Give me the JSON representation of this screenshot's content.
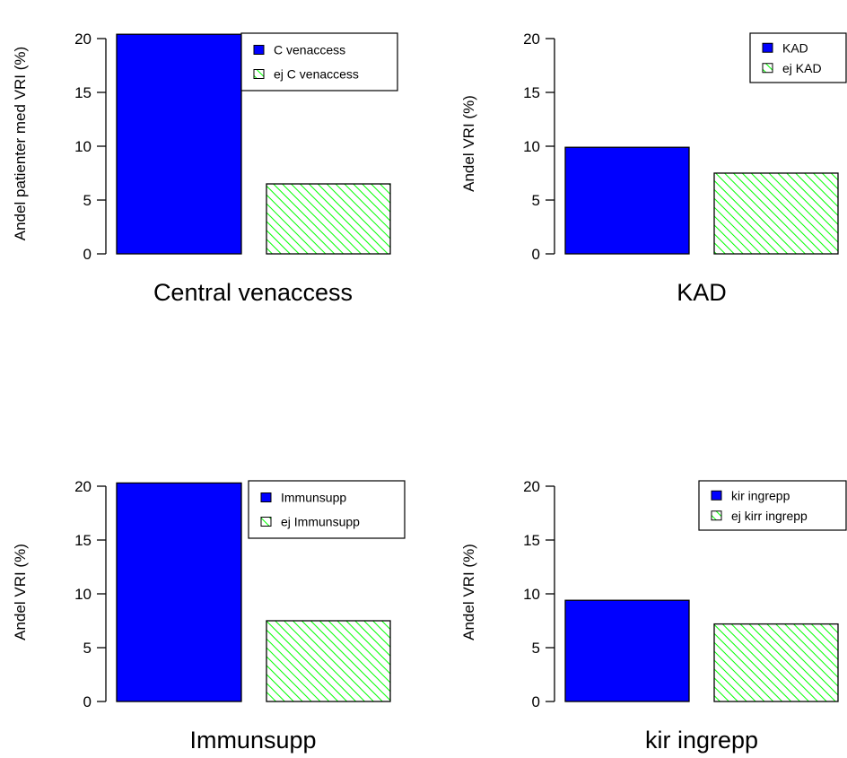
{
  "chart_data": [
    {
      "type": "bar",
      "xlabel": "Central venaccess",
      "ylabel": "Andel patienter med VRI (%)",
      "ylim": [
        0,
        20
      ],
      "yticks": [
        0,
        5,
        10,
        15,
        20
      ],
      "legend": "top-right",
      "series": [
        {
          "name": "C venaccess",
          "values": [
            20.4
          ],
          "color": "#0000ff",
          "pattern": "solid"
        },
        {
          "name": "ej C venaccess",
          "values": [
            6.5
          ],
          "color": "#00ff00",
          "pattern": "hatch"
        }
      ]
    },
    {
      "type": "bar",
      "xlabel": "KAD",
      "ylabel": "Andel VRI (%)",
      "ylim": [
        0,
        20
      ],
      "yticks": [
        0,
        5,
        10,
        15,
        20
      ],
      "legend": "top-right",
      "series": [
        {
          "name": "KAD",
          "values": [
            9.9
          ],
          "color": "#0000ff",
          "pattern": "solid"
        },
        {
          "name": "ej KAD",
          "values": [
            7.5
          ],
          "color": "#00ff00",
          "pattern": "hatch"
        }
      ]
    },
    {
      "type": "bar",
      "xlabel": "Immunsupp",
      "ylabel": "Andel VRI (%)",
      "ylim": [
        0,
        20
      ],
      "yticks": [
        0,
        5,
        10,
        15,
        20
      ],
      "legend": "top-right",
      "series": [
        {
          "name": "Immunsupp",
          "values": [
            20.3
          ],
          "color": "#0000ff",
          "pattern": "solid"
        },
        {
          "name": "ej Immunsupp",
          "values": [
            7.5
          ],
          "color": "#00ff00",
          "pattern": "hatch"
        }
      ]
    },
    {
      "type": "bar",
      "xlabel": "kir ingrepp",
      "ylabel": "Andel VRI (%)",
      "ylim": [
        0,
        20
      ],
      "yticks": [
        0,
        5,
        10,
        15,
        20
      ],
      "legend": "top-right",
      "series": [
        {
          "name": "kir ingrepp",
          "values": [
            9.4
          ],
          "color": "#0000ff",
          "pattern": "solid"
        },
        {
          "name": "ej kirr ingrepp",
          "values": [
            7.2
          ],
          "color": "#00ff00",
          "pattern": "hatch"
        }
      ]
    }
  ]
}
